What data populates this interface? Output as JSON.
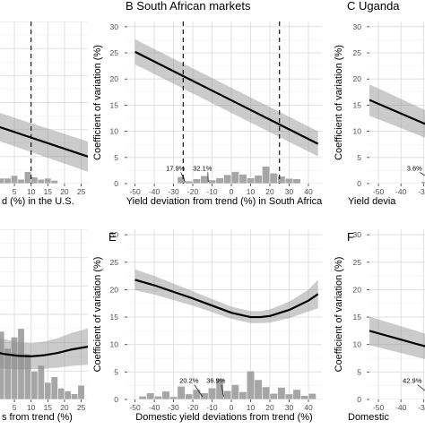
{
  "chart_data": [
    {
      "panel": "A",
      "type": "line",
      "visible_title": "",
      "xlabel": "d (%) in the U.S.",
      "ylabel": "",
      "xlim": [
        -2,
        27
      ],
      "ylim": [
        0,
        30
      ],
      "xticks": [
        0,
        5,
        10,
        15,
        20,
        25
      ],
      "ytick_labels_visible": false,
      "grid": true,
      "dashed_vlines": [
        10
      ],
      "annotations": [],
      "fit": {
        "x": [
          -2,
          27
        ],
        "y": [
          11.0,
          5.0
        ],
        "ci_halfwidth": [
          2.6,
          2.8
        ]
      },
      "histogram": {
        "x": [
          -1,
          1,
          3,
          5,
          7,
          9,
          11,
          13,
          15,
          17
        ],
        "y": [
          1.5,
          1.0,
          1.0,
          1.5,
          0.8,
          2.2,
          1.2,
          0.8,
          1.0,
          0.6
        ]
      }
    },
    {
      "panel": "B",
      "type": "line",
      "visible_title": "B South African markets",
      "xlabel": "Yield deviation from trend (%) in South Africa",
      "ylabel": "Coefficient of variation (%)",
      "xlim": [
        -54,
        47
      ],
      "ylim": [
        0,
        31
      ],
      "xticks": [
        -50,
        -40,
        -30,
        -20,
        -10,
        0,
        10,
        20,
        30,
        40
      ],
      "yticks": [
        0,
        5,
        10,
        15,
        20,
        25,
        30
      ],
      "grid": true,
      "dashed_vlines": [
        -25,
        25
      ],
      "annotations": [
        {
          "text": "17.9%",
          "x": -29,
          "y": 2.5,
          "px": -24,
          "py": 0.3
        },
        {
          "text": "32.1%",
          "x": -15,
          "y": 2.5,
          "px": -12,
          "py": 0.3
        }
      ],
      "fit": {
        "x": [
          -50,
          45
        ],
        "y": [
          25.2,
          7.6
        ],
        "ci_halfwidth": [
          2.4,
          2.4
        ]
      },
      "histogram": {
        "x": [
          -26,
          -22,
          -18,
          -14,
          -10,
          -6,
          -2,
          2,
          6,
          10,
          14,
          18,
          22,
          26,
          30,
          34
        ],
        "y": [
          1.3,
          0.5,
          0.9,
          1.5,
          0.7,
          1.1,
          1.7,
          2.3,
          1.8,
          1.1,
          1.6,
          3.3,
          2.0,
          1.4,
          1.0,
          0.9
        ]
      }
    },
    {
      "panel": "C",
      "type": "line",
      "visible_title": "C Uganda",
      "xlabel": "Yield devia",
      "ylabel": "Coefficient of variation (%)",
      "xlim": [
        -54,
        -19
      ],
      "ylim": [
        0,
        31
      ],
      "xticks": [
        -50,
        -40,
        -30,
        -20
      ],
      "yticks": [
        0,
        5,
        10,
        15,
        20,
        25,
        30
      ],
      "grid": true,
      "dashed_vlines": [
        -20
      ],
      "annotations": [
        {
          "text": "3.6%",
          "x": -34,
          "y": 2.5,
          "px": -25,
          "py": 0.3
        }
      ],
      "fit": {
        "x": [
          -54,
          -19
        ],
        "y": [
          16.0,
          9.5
        ],
        "ci_halfwidth": [
          3.0,
          2.5
        ]
      },
      "histogram": {
        "x": [
          -29,
          -25,
          -21
        ],
        "y": [
          0.4,
          0.9,
          0.6
        ]
      }
    },
    {
      "panel": "D",
      "type": "line",
      "visible_title": "",
      "xlabel": "s from trend (%)",
      "ylabel": "",
      "xlim": [
        -2,
        27
      ],
      "ylim": [
        0,
        30
      ],
      "xticks": [
        0,
        5,
        10,
        15,
        20,
        25
      ],
      "ytick_labels_visible": false,
      "grid": true,
      "dashed_vlines": [],
      "annotations": [],
      "fit": {
        "x": [
          -2,
          2,
          6,
          10,
          14,
          18,
          22,
          27
        ],
        "y": [
          8.5,
          8.0,
          7.7,
          7.6,
          7.8,
          8.2,
          8.8,
          9.3
        ],
        "ci_halfwidth": [
          2.8,
          2.6,
          2.4,
          2.3,
          2.4,
          2.6,
          2.9,
          3.2
        ]
      },
      "histogram": {
        "x": [
          -1,
          1,
          3,
          5,
          7,
          9,
          11,
          13,
          15,
          17,
          19,
          21,
          23,
          25
        ],
        "y": [
          13,
          12,
          9,
          11,
          12.5,
          8,
          5,
          6,
          3,
          4,
          2,
          1.5,
          1,
          2.5
        ]
      }
    },
    {
      "panel": "E",
      "type": "line",
      "visible_title": "E",
      "xlabel": "Domestic yield deviations from trend (%)",
      "ylabel": "Coefficient of variation (%)",
      "xlim": [
        -54,
        47
      ],
      "ylim": [
        0,
        31
      ],
      "xticks": [
        -50,
        -40,
        -30,
        -20,
        -10,
        0,
        10,
        20,
        30,
        40
      ],
      "yticks": [
        0,
        5,
        10,
        15,
        20,
        25,
        30
      ],
      "grid": true,
      "dashed_vlines": [],
      "annotations": [
        {
          "text": "20.2%",
          "x": -22,
          "y": 3.0,
          "px": -15,
          "py": 0.5
        },
        {
          "text": "36.9%",
          "x": -8,
          "y": 3.0,
          "px": -4,
          "py": 0.5
        }
      ],
      "fit": {
        "x": [
          -50,
          -40,
          -30,
          -20,
          -10,
          0,
          10,
          15,
          20,
          30,
          40,
          45
        ],
        "y": [
          21.8,
          20.8,
          19.6,
          18.4,
          17.1,
          15.8,
          15.0,
          15.0,
          15.2,
          16.3,
          18.0,
          19.2
        ],
        "ci_halfwidth": [
          1.9,
          1.7,
          1.5,
          1.3,
          1.2,
          1.1,
          1.1,
          1.1,
          1.2,
          1.5,
          2.0,
          2.6
        ]
      },
      "histogram": {
        "x": [
          -46,
          -42,
          -38,
          -34,
          -30,
          -26,
          -22,
          -18,
          -14,
          -10,
          -6,
          -2,
          2,
          6,
          10,
          14,
          18,
          22,
          26,
          30,
          34,
          38,
          42
        ],
        "y": [
          0.6,
          1.2,
          0.6,
          1.5,
          0.5,
          2.4,
          1.0,
          1.8,
          1.2,
          2.1,
          3.8,
          1.6,
          2.7,
          1.4,
          5.2,
          3.6,
          2.3,
          1.1,
          2.2,
          1.0,
          1.8,
          0.7,
          1.1
        ]
      }
    },
    {
      "panel": "F",
      "type": "line",
      "visible_title": "F",
      "xlabel": "Domestic",
      "ylabel": "Coefficient of variation (%)",
      "xlim": [
        -54,
        -19
      ],
      "ylim": [
        0,
        31
      ],
      "xticks": [
        -50,
        -40,
        -30
      ],
      "yticks": [
        0,
        5,
        10,
        15,
        20,
        25,
        30
      ],
      "grid": true,
      "dashed_vlines": [],
      "annotations": [
        {
          "text": "42.9%",
          "x": -35,
          "y": 3.0,
          "px": -26,
          "py": 0.5
        }
      ],
      "fit": {
        "x": [
          -54,
          -19
        ],
        "y": [
          12.5,
          8.5
        ],
        "ci_halfwidth": [
          2.6,
          2.2
        ]
      },
      "histogram": {
        "x": [
          -26,
          -22
        ],
        "y": [
          0.8,
          3.8
        ]
      }
    }
  ]
}
